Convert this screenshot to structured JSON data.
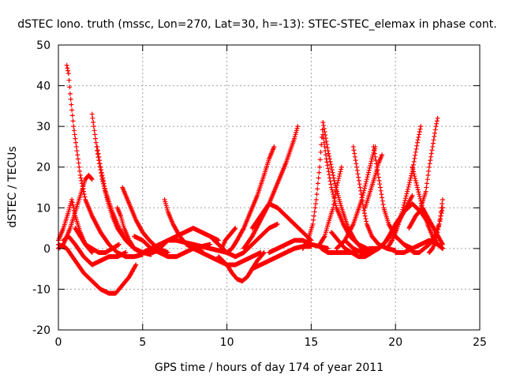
{
  "chart_data": {
    "type": "scatter",
    "title": "dSTEC Iono. truth (mssc, Lon=270, Lat=30, h=-13): STEC-STEC_elemax in phase cont.",
    "xlabel": "GPS time / hours of day 174 of year 2011",
    "ylabel": "dSTEC  / TECUs",
    "xlim": [
      0,
      25
    ],
    "ylim": [
      -20,
      50
    ],
    "xticks": [
      "0",
      "5",
      "10",
      "15",
      "20",
      "25"
    ],
    "yticks": [
      "-20",
      "-10",
      "0",
      "10",
      "20",
      "30",
      "40",
      "50"
    ],
    "grid": true,
    "marker": "+",
    "color": "#ff0000",
    "series": [
      {
        "x": [
          0.0,
          0.3,
          0.6,
          0.8,
          1.0,
          1.3,
          1.6,
          2.0
        ],
        "y": [
          2,
          5,
          9,
          12,
          8,
          4,
          1,
          -1
        ]
      },
      {
        "x": [
          0.5,
          0.6,
          0.7,
          0.9,
          1.1,
          1.3,
          1.6,
          2.0,
          2.5,
          3.0,
          3.5,
          4.0,
          4.5,
          5.0
        ],
        "y": [
          45,
          43,
          38,
          30,
          24,
          18,
          12,
          8,
          4,
          1,
          -1,
          -2,
          -2,
          -1.5
        ]
      },
      {
        "x": [
          0.0,
          0.3,
          0.7,
          1.0,
          1.3,
          1.6,
          1.8,
          2.0
        ],
        "y": [
          0,
          1,
          5,
          9,
          13,
          17,
          18,
          17
        ]
      },
      {
        "x": [
          0.0,
          0.5,
          1.0,
          1.5,
          2.0,
          2.5,
          3.0,
          3.4,
          3.8,
          4.2,
          4.6
        ],
        "y": [
          1,
          0,
          -3,
          -6,
          -8,
          -10,
          -11,
          -11,
          -9,
          -7,
          -4
        ]
      },
      {
        "x": [
          0.3,
          0.6,
          1.0,
          1.5,
          2.0,
          2.5,
          3.0,
          3.5,
          4.0
        ],
        "y": [
          2,
          3,
          1,
          -2,
          -4,
          -3,
          -2,
          -2,
          -1
        ]
      },
      {
        "x": [
          2.0,
          2.1,
          2.3,
          2.6,
          2.9,
          3.2,
          3.5,
          4.0,
          4.5,
          5.0,
          5.5
        ],
        "y": [
          33,
          30,
          24,
          17,
          12,
          8,
          5,
          2,
          0,
          -1,
          -1.5
        ]
      },
      {
        "x": [
          2.3,
          2.5,
          2.8,
          3.2,
          3.6,
          4.0,
          4.5,
          5.0
        ],
        "y": [
          25,
          20,
          14,
          9,
          5,
          2,
          0,
          -1
        ]
      },
      {
        "x": [
          1.0,
          1.3,
          1.6,
          2.0,
          2.4,
          2.8,
          3.2,
          3.6
        ],
        "y": [
          5,
          3,
          1,
          0,
          -1,
          -1,
          0,
          1
        ]
      },
      {
        "x": [
          3.5,
          3.7,
          3.9,
          4.2,
          4.5,
          4.9,
          5.5,
          6.0
        ],
        "y": [
          10,
          8,
          5,
          2,
          0,
          -1,
          -1,
          -0.5
        ]
      },
      {
        "x": [
          3.8,
          4.0,
          4.3,
          4.6,
          5.0,
          5.4,
          5.9,
          6.5
        ],
        "y": [
          15,
          13,
          10,
          7,
          4,
          2,
          0,
          -1
        ]
      },
      {
        "x": [
          5.0,
          5.5,
          6.0,
          6.5,
          7.0,
          7.5,
          8.0,
          8.5,
          9.0,
          9.5,
          10.0
        ],
        "y": [
          -1,
          0,
          1,
          2,
          2,
          1.5,
          1,
          0.5,
          0,
          -0.5,
          -1
        ]
      },
      {
        "x": [
          4.5,
          5.0,
          5.5,
          6.0,
          6.5,
          7.0,
          7.5,
          8.0,
          8.5,
          9.0
        ],
        "y": [
          3,
          2,
          0,
          -1,
          -2,
          -2,
          -1,
          0,
          0.5,
          1
        ]
      },
      {
        "x": [
          6.3,
          6.5,
          6.8,
          7.2,
          7.6,
          8.0,
          8.5
        ],
        "y": [
          12,
          9,
          6,
          3,
          1,
          0,
          -0.5
        ]
      },
      {
        "x": [
          5.5,
          6.0,
          6.5,
          7.0,
          7.5,
          8.0,
          8.5,
          9.0,
          9.5
        ],
        "y": [
          -1,
          0,
          2,
          3,
          4,
          5,
          4,
          3,
          2
        ]
      },
      {
        "x": [
          8.0,
          8.5,
          9.0,
          9.5,
          10.0,
          10.5,
          11.0,
          11.5,
          12.0
        ],
        "y": [
          0,
          -1,
          -2,
          -3,
          -4,
          -4,
          -3,
          -2,
          -1
        ]
      },
      {
        "x": [
          9.5,
          10.0,
          10.3,
          10.6,
          10.9,
          11.2,
          11.5,
          11.8,
          12.2
        ],
        "y": [
          -2,
          -4,
          -6,
          -7.5,
          -8,
          -7,
          -5,
          -3,
          -1
        ]
      },
      {
        "x": [
          9.0,
          9.5,
          10.0,
          10.5,
          11.0,
          11.5,
          12.0,
          12.5,
          13.0
        ],
        "y": [
          3,
          1,
          -1,
          -2,
          -1,
          1,
          3,
          5,
          6
        ]
      },
      {
        "x": [
          9.7,
          9.9,
          10.1,
          10.3,
          10.5
        ],
        "y": [
          0,
          2,
          3,
          4,
          5
        ]
      },
      {
        "x": [
          10.0,
          10.3,
          10.6,
          11.0,
          11.4,
          11.8,
          12.2,
          12.5,
          12.8
        ],
        "y": [
          -1,
          0,
          2,
          5,
          9,
          13,
          18,
          22,
          25
        ]
      },
      {
        "x": [
          11.0,
          11.5,
          12.0,
          12.5,
          13.0,
          13.5,
          14.0,
          14.2
        ],
        "y": [
          0,
          3,
          7,
          11,
          16,
          21,
          27,
          30
        ]
      },
      {
        "x": [
          11.5,
          12.0,
          12.5,
          13.0,
          13.5,
          14.0,
          14.5,
          15.0
        ],
        "y": [
          5,
          8,
          11,
          10,
          8,
          6,
          4,
          2
        ]
      },
      {
        "x": [
          11.5,
          12.0,
          12.5,
          13.0,
          13.5,
          14.0,
          14.5,
          15.0
        ],
        "y": [
          -5,
          -4,
          -3,
          -2,
          -1,
          0,
          0.5,
          0.5
        ]
      },
      {
        "x": [
          12.5,
          13.0,
          13.5,
          14.0,
          14.5,
          15.0,
          15.5,
          16.0
        ],
        "y": [
          -1,
          0,
          1,
          2,
          2,
          1,
          0.5,
          0
        ]
      },
      {
        "x": [
          14.5,
          14.8,
          15.1,
          15.3,
          15.5,
          15.7,
          16.0,
          16.4,
          16.8,
          17.2,
          17.6,
          18.0
        ],
        "y": [
          0,
          2,
          6,
          12,
          20,
          31,
          24,
          16,
          10,
          5,
          2,
          0
        ]
      },
      {
        "x": [
          15.7,
          15.9,
          16.2,
          16.5,
          16.9,
          17.3,
          17.8,
          18.3
        ],
        "y": [
          28,
          22,
          15,
          10,
          6,
          3,
          1,
          0
        ]
      },
      {
        "x": [
          15.5,
          15.8,
          16.0,
          16.3,
          16.5,
          16.8
        ],
        "y": [
          1,
          3,
          6,
          10,
          15,
          20
        ]
      },
      {
        "x": [
          15.6,
          16.0,
          16.5,
          17.0,
          17.5,
          18.0,
          18.5,
          19.0
        ],
        "y": [
          0,
          -1,
          -1,
          -1,
          -1,
          -0.5,
          0,
          0
        ]
      },
      {
        "x": [
          16.2,
          16.6,
          17.0,
          17.4,
          17.8,
          18.2,
          18.6,
          19.0
        ],
        "y": [
          4,
          2,
          0,
          -1,
          -2,
          -2,
          -1,
          0
        ]
      },
      {
        "x": [
          17.5,
          17.7,
          17.9,
          18.1,
          18.3,
          18.6,
          19.0,
          19.5,
          20.0
        ],
        "y": [
          25,
          20,
          15,
          10,
          6,
          3,
          1,
          0,
          -0.5
        ]
      },
      {
        "x": [
          16.5,
          17.0,
          17.5,
          18.0,
          18.3,
          18.6,
          18.8
        ],
        "y": [
          0,
          2,
          6,
          12,
          17,
          22,
          25
        ]
      },
      {
        "x": [
          18.7,
          18.9,
          19.1,
          19.3,
          19.6,
          20.0,
          20.5,
          21.0
        ],
        "y": [
          25,
          20,
          15,
          10,
          6,
          3,
          1,
          0
        ]
      },
      {
        "x": [
          18.2,
          18.5,
          18.8,
          19.0,
          19.2
        ],
        "y": [
          10,
          14,
          18,
          21,
          23
        ]
      },
      {
        "x": [
          17.0,
          17.5,
          18.0,
          18.5,
          19.0,
          19.5,
          20.0,
          20.5,
          21.0
        ],
        "y": [
          2,
          0,
          -1,
          -1,
          0,
          2,
          5,
          9,
          13
        ]
      },
      {
        "x": [
          19.5,
          19.8,
          20.1,
          20.4,
          20.7,
          21.0,
          21.3,
          21.5
        ],
        "y": [
          0,
          2,
          5,
          9,
          14,
          19,
          26,
          30
        ]
      },
      {
        "x": [
          19.0,
          19.3,
          19.6,
          20.0,
          20.5,
          21.0,
          21.5,
          22.0
        ],
        "y": [
          0,
          1,
          3,
          6,
          9,
          11,
          9,
          6
        ]
      },
      {
        "x": [
          20.5,
          20.8,
          21.1,
          21.4,
          21.7,
          22.0,
          22.3,
          22.6,
          22.8
        ],
        "y": [
          1,
          0,
          -1,
          -1,
          0,
          1,
          3,
          6,
          10
        ]
      },
      {
        "x": [
          21.0,
          21.3,
          21.6,
          21.9,
          22.2,
          22.5,
          22.8
        ],
        "y": [
          20,
          15,
          10,
          6,
          3,
          1,
          0
        ]
      },
      {
        "x": [
          21.5,
          21.8,
          22.0,
          22.2,
          22.4,
          22.5
        ],
        "y": [
          10,
          14,
          20,
          25,
          30,
          32
        ]
      },
      {
        "x": [
          20.8,
          21.2,
          21.6,
          22.0,
          22.4,
          22.8
        ],
        "y": [
          5,
          8,
          10,
          7,
          4,
          1
        ]
      },
      {
        "x": [
          22.0,
          22.2,
          22.4,
          22.6,
          22.8
        ],
        "y": [
          -1,
          0,
          2,
          6,
          12
        ]
      },
      {
        "x": [
          20.0,
          20.5,
          21.0,
          21.5,
          22.0,
          22.5,
          22.8
        ],
        "y": [
          -1,
          -1,
          0,
          1,
          2,
          1,
          0
        ]
      }
    ]
  }
}
